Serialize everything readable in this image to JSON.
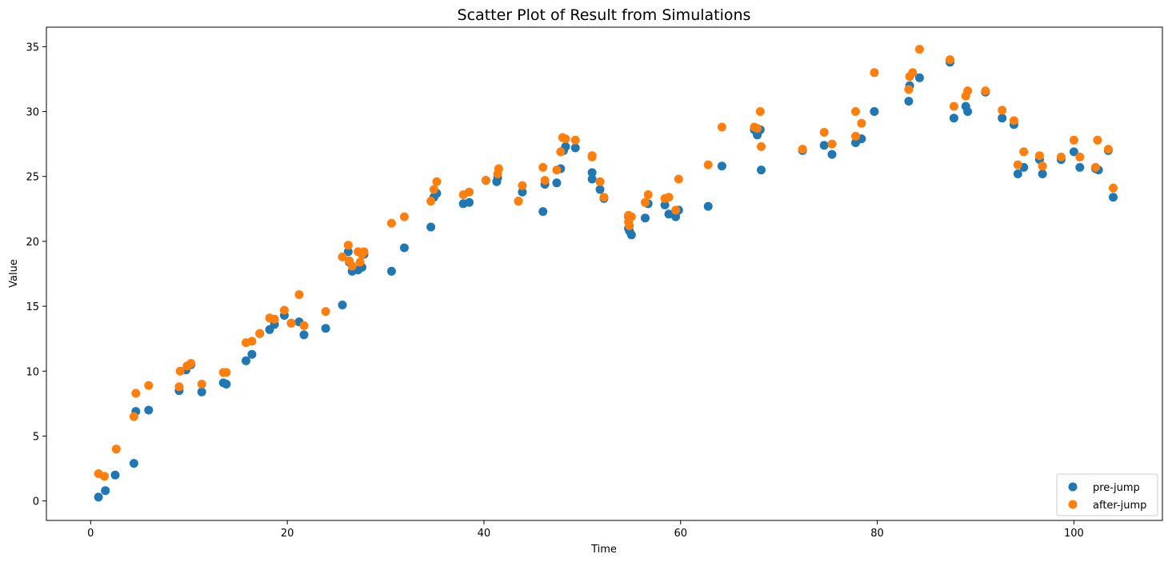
{
  "chart_data": {
    "type": "scatter",
    "title": "Scatter Plot of Result from Simulations",
    "xlabel": "Time",
    "ylabel": "Value",
    "xlim": [
      -4.5,
      109
    ],
    "ylim": [
      -1.5,
      36.5
    ],
    "xticks": [
      0,
      20,
      40,
      60,
      80,
      100
    ],
    "yticks": [
      0,
      5,
      10,
      15,
      20,
      25,
      30,
      35
    ],
    "grid": false,
    "legend_position": "lower-right",
    "series": [
      {
        "name": "pre-jump",
        "color": "#1f77b4",
        "points": [
          [
            0.8,
            0.3
          ],
          [
            1.5,
            0.8
          ],
          [
            2.5,
            2.0
          ],
          [
            4.4,
            2.9
          ],
          [
            4.6,
            6.9
          ],
          [
            5.9,
            7.0
          ],
          [
            9.0,
            8.5
          ],
          [
            9.7,
            10.1
          ],
          [
            10.2,
            10.5
          ],
          [
            11.3,
            8.4
          ],
          [
            13.5,
            9.1
          ],
          [
            13.8,
            9.0
          ],
          [
            15.8,
            10.8
          ],
          [
            16.4,
            11.3
          ],
          [
            17.2,
            12.9
          ],
          [
            18.2,
            13.2
          ],
          [
            18.7,
            13.6
          ],
          [
            19.7,
            14.3
          ],
          [
            20.4,
            13.7
          ],
          [
            21.2,
            13.8
          ],
          [
            21.7,
            12.8
          ],
          [
            23.9,
            13.3
          ],
          [
            25.6,
            15.1
          ],
          [
            26.2,
            19.2
          ],
          [
            26.3,
            18.4
          ],
          [
            26.6,
            17.7
          ],
          [
            27.2,
            17.8
          ],
          [
            27.6,
            18.0
          ],
          [
            27.8,
            19.0
          ],
          [
            30.6,
            17.7
          ],
          [
            31.9,
            19.5
          ],
          [
            34.6,
            21.1
          ],
          [
            34.9,
            23.4
          ],
          [
            35.2,
            23.7
          ],
          [
            37.9,
            22.9
          ],
          [
            38.5,
            23.0
          ],
          [
            40.2,
            24.7
          ],
          [
            41.3,
            24.6
          ],
          [
            41.4,
            24.9
          ],
          [
            43.5,
            23.1
          ],
          [
            43.9,
            23.8
          ],
          [
            46.0,
            22.3
          ],
          [
            46.2,
            24.4
          ],
          [
            47.4,
            24.5
          ],
          [
            47.8,
            25.6
          ],
          [
            48.1,
            27.0
          ],
          [
            48.3,
            27.3
          ],
          [
            49.3,
            27.2
          ],
          [
            51.0,
            25.3
          ],
          [
            51.0,
            24.8
          ],
          [
            51.8,
            24.0
          ],
          [
            52.2,
            23.3
          ],
          [
            54.7,
            21.9
          ],
          [
            54.7,
            21.0
          ],
          [
            54.8,
            20.8
          ],
          [
            55.0,
            20.5
          ],
          [
            56.4,
            21.8
          ],
          [
            56.7,
            22.9
          ],
          [
            58.4,
            22.8
          ],
          [
            58.8,
            22.1
          ],
          [
            59.5,
            21.9
          ],
          [
            59.8,
            22.4
          ],
          [
            62.8,
            22.7
          ],
          [
            64.2,
            25.8
          ],
          [
            67.5,
            28.6
          ],
          [
            67.8,
            28.2
          ],
          [
            68.1,
            28.6
          ],
          [
            68.2,
            25.5
          ],
          [
            72.4,
            27.0
          ],
          [
            74.6,
            27.4
          ],
          [
            75.4,
            26.7
          ],
          [
            77.8,
            27.6
          ],
          [
            78.4,
            27.9
          ],
          [
            79.7,
            30.0
          ],
          [
            83.2,
            30.8
          ],
          [
            83.3,
            32.0
          ],
          [
            84.3,
            32.6
          ],
          [
            87.4,
            33.8
          ],
          [
            87.8,
            29.5
          ],
          [
            89.0,
            30.4
          ],
          [
            89.2,
            30.0
          ],
          [
            91.0,
            31.5
          ],
          [
            92.7,
            29.5
          ],
          [
            93.9,
            29.0
          ],
          [
            94.3,
            25.2
          ],
          [
            94.9,
            25.7
          ],
          [
            96.5,
            26.3
          ],
          [
            96.8,
            25.2
          ],
          [
            98.7,
            26.3
          ],
          [
            100.0,
            26.9
          ],
          [
            100.6,
            25.7
          ],
          [
            102.2,
            25.6
          ],
          [
            102.5,
            25.5
          ],
          [
            103.5,
            27.0
          ],
          [
            104.0,
            23.4
          ]
        ]
      },
      {
        "name": "after-jump",
        "color": "#ff7f0e",
        "points": [
          [
            0.8,
            2.1
          ],
          [
            1.4,
            1.9
          ],
          [
            2.6,
            4.0
          ],
          [
            4.4,
            6.5
          ],
          [
            4.6,
            8.3
          ],
          [
            5.9,
            8.9
          ],
          [
            9.0,
            8.8
          ],
          [
            9.1,
            10.0
          ],
          [
            9.8,
            10.4
          ],
          [
            10.2,
            10.6
          ],
          [
            11.3,
            9.0
          ],
          [
            13.5,
            9.9
          ],
          [
            13.8,
            9.9
          ],
          [
            15.8,
            12.2
          ],
          [
            16.4,
            12.3
          ],
          [
            17.2,
            12.9
          ],
          [
            18.2,
            14.1
          ],
          [
            18.7,
            14.0
          ],
          [
            19.7,
            14.7
          ],
          [
            20.4,
            13.7
          ],
          [
            21.2,
            15.9
          ],
          [
            21.7,
            13.5
          ],
          [
            23.9,
            14.6
          ],
          [
            25.6,
            18.8
          ],
          [
            26.2,
            19.7
          ],
          [
            26.3,
            18.5
          ],
          [
            26.6,
            18.1
          ],
          [
            27.2,
            19.2
          ],
          [
            27.4,
            18.4
          ],
          [
            27.6,
            19.0
          ],
          [
            27.8,
            19.2
          ],
          [
            30.6,
            21.4
          ],
          [
            31.9,
            21.9
          ],
          [
            34.6,
            23.1
          ],
          [
            34.9,
            24.0
          ],
          [
            35.2,
            24.6
          ],
          [
            37.9,
            23.6
          ],
          [
            38.5,
            23.8
          ],
          [
            40.2,
            24.7
          ],
          [
            41.4,
            25.2
          ],
          [
            41.5,
            25.6
          ],
          [
            43.5,
            23.1
          ],
          [
            43.9,
            24.3
          ],
          [
            46.0,
            25.7
          ],
          [
            46.2,
            24.7
          ],
          [
            47.4,
            25.5
          ],
          [
            47.8,
            26.9
          ],
          [
            48.0,
            28.0
          ],
          [
            48.3,
            27.9
          ],
          [
            49.3,
            27.8
          ],
          [
            51.0,
            26.6
          ],
          [
            51.0,
            26.5
          ],
          [
            51.8,
            24.6
          ],
          [
            52.2,
            23.4
          ],
          [
            54.7,
            22.0
          ],
          [
            54.7,
            21.5
          ],
          [
            54.8,
            21.2
          ],
          [
            55.0,
            21.9
          ],
          [
            56.4,
            23.0
          ],
          [
            56.7,
            23.6
          ],
          [
            58.4,
            23.3
          ],
          [
            58.8,
            23.4
          ],
          [
            59.5,
            22.4
          ],
          [
            59.8,
            24.8
          ],
          [
            62.8,
            25.9
          ],
          [
            64.2,
            28.8
          ],
          [
            67.5,
            28.8
          ],
          [
            67.8,
            28.7
          ],
          [
            68.1,
            30.0
          ],
          [
            68.2,
            27.3
          ],
          [
            72.4,
            27.1
          ],
          [
            74.6,
            28.4
          ],
          [
            75.4,
            27.5
          ],
          [
            77.8,
            28.1
          ],
          [
            77.8,
            30.0
          ],
          [
            78.4,
            29.1
          ],
          [
            79.7,
            33.0
          ],
          [
            83.2,
            31.7
          ],
          [
            83.3,
            32.7
          ],
          [
            83.6,
            33.0
          ],
          [
            84.3,
            34.8
          ],
          [
            87.4,
            34.0
          ],
          [
            87.8,
            30.4
          ],
          [
            89.0,
            31.2
          ],
          [
            89.2,
            31.6
          ],
          [
            91.0,
            31.6
          ],
          [
            92.7,
            30.1
          ],
          [
            93.9,
            29.3
          ],
          [
            94.3,
            25.9
          ],
          [
            94.9,
            26.9
          ],
          [
            96.5,
            26.6
          ],
          [
            96.8,
            25.8
          ],
          [
            98.7,
            26.5
          ],
          [
            100.0,
            27.8
          ],
          [
            100.6,
            26.5
          ],
          [
            102.2,
            25.7
          ],
          [
            102.4,
            27.8
          ],
          [
            103.5,
            27.1
          ],
          [
            104.0,
            24.1
          ]
        ]
      }
    ]
  }
}
